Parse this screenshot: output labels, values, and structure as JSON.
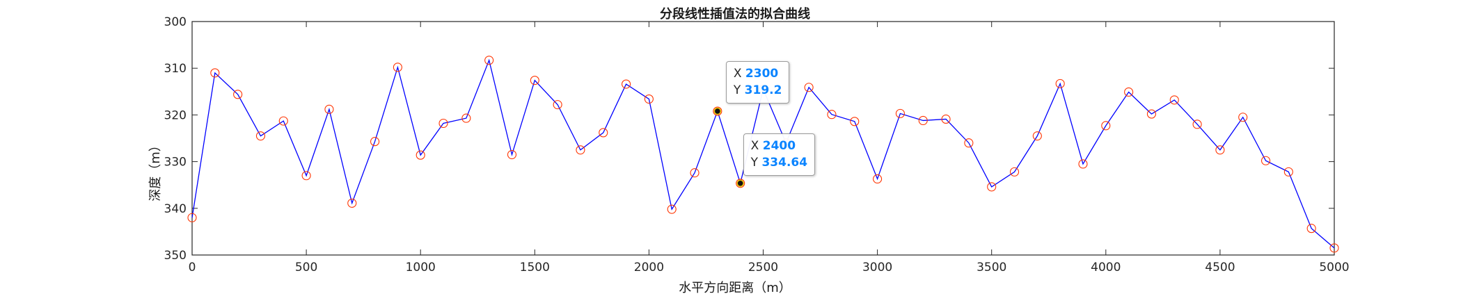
{
  "chart_data": {
    "type": "line",
    "title": "分段线性插值法的拟合曲线",
    "xlabel": "水平方向距离（m）",
    "ylabel": "深度（m）",
    "xlim": [
      0,
      5000
    ],
    "ylim": [
      300,
      350
    ],
    "y_reversed": true,
    "grid": false,
    "x_ticks": [
      0,
      500,
      1000,
      1500,
      2000,
      2500,
      3000,
      3500,
      4000,
      4500,
      5000
    ],
    "y_ticks": [
      300,
      310,
      320,
      330,
      340,
      350
    ],
    "line_color": "#0000ff",
    "marker_color": "#ff3300",
    "series": [
      {
        "x": [
          0,
          100,
          200,
          300,
          400,
          500,
          600,
          700,
          800,
          900,
          1000,
          1100,
          1200,
          1300,
          1400,
          1500,
          1600,
          1700,
          1800,
          1900,
          2000,
          2100,
          2200,
          2300,
          2400,
          2500,
          2600,
          2700,
          2800,
          2900,
          3000,
          3100,
          3200,
          3300,
          3400,
          3500,
          3600,
          3700,
          3800,
          3900,
          4000,
          4100,
          4200,
          4300,
          4400,
          4500,
          4600,
          4700,
          4800,
          4900,
          5000
        ],
        "y": [
          342.0,
          311.0,
          315.6,
          324.5,
          321.3,
          333.0,
          318.8,
          338.9,
          325.7,
          309.8,
          328.6,
          321.8,
          320.7,
          308.3,
          328.5,
          312.6,
          317.8,
          327.5,
          323.8,
          313.4,
          316.6,
          340.2,
          332.4,
          319.2,
          334.64,
          314.5,
          326.0,
          314.1,
          319.9,
          321.4,
          333.7,
          319.7,
          321.2,
          320.9,
          326.0,
          335.4,
          332.2,
          324.5,
          313.3,
          330.5,
          322.3,
          315.1,
          319.8,
          316.8,
          322.0,
          327.5,
          320.5,
          329.8,
          332.2,
          344.3,
          348.5
        ]
      }
    ],
    "datatips": [
      {
        "x_label": "X",
        "x_value": "2300",
        "y_label": "Y",
        "y_value": "319.2",
        "x": 2300,
        "y": 319.2
      },
      {
        "x_label": "X",
        "x_value": "2400",
        "y_label": "Y",
        "y_value": "334.64",
        "x": 2400,
        "y": 334.64
      }
    ]
  }
}
